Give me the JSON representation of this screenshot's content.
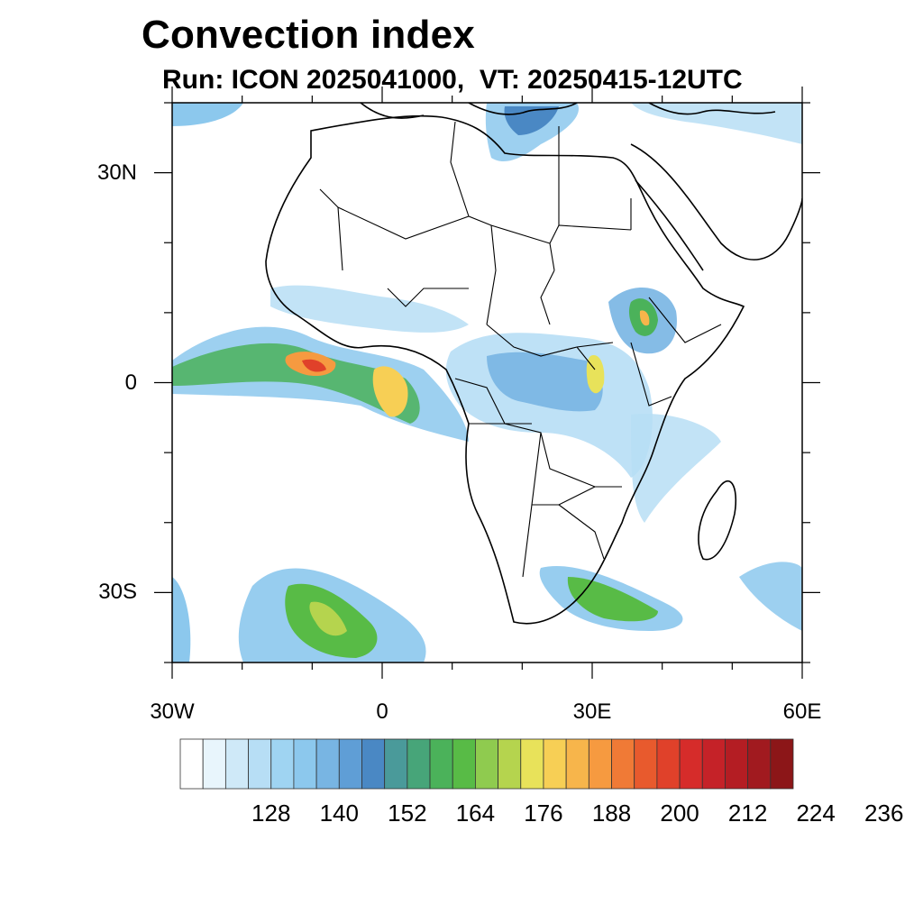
{
  "title": "Convection index",
  "subtitle": "Run: ICON 2025041000,  VT: 20250415-12UTC",
  "chart_data": {
    "type": "heatmap",
    "map_extent": {
      "lon": [
        -30,
        60
      ],
      "lat": [
        -40,
        40
      ]
    },
    "x_ticks": [
      {
        "lon": -30,
        "label": "30W"
      },
      {
        "lon": 0,
        "label": "0"
      },
      {
        "lon": 30,
        "label": "30E"
      },
      {
        "lon": 60,
        "label": "60E"
      }
    ],
    "y_ticks": [
      {
        "lat": 30,
        "label": "30N"
      },
      {
        "lat": 0,
        "label": "0"
      },
      {
        "lat": -30,
        "label": "30S"
      }
    ],
    "minor_tick_step_deg": 10,
    "colorbar": {
      "levels_start": 116,
      "level_step": 4,
      "colors": [
        "#ffffff",
        "#e8f5fc",
        "#cfe9f8",
        "#b7def5",
        "#9fd4f2",
        "#8cc8ed",
        "#78b5e3",
        "#5f9ed6",
        "#4a88c4",
        "#4a9a9a",
        "#47a579",
        "#4bb25a",
        "#58bb46",
        "#8fcb4f",
        "#b5d44e",
        "#e8e25a",
        "#f7cf55",
        "#f7b54b",
        "#f69a40",
        "#f07a36",
        "#e85a2d",
        "#e0412a",
        "#d62c2a",
        "#c52228",
        "#b41d23",
        "#a11a1f",
        "#8c1618"
      ],
      "tick_labels": [
        "128",
        "140",
        "152",
        "164",
        "176",
        "188",
        "200",
        "212",
        "224",
        "236"
      ]
    }
  }
}
